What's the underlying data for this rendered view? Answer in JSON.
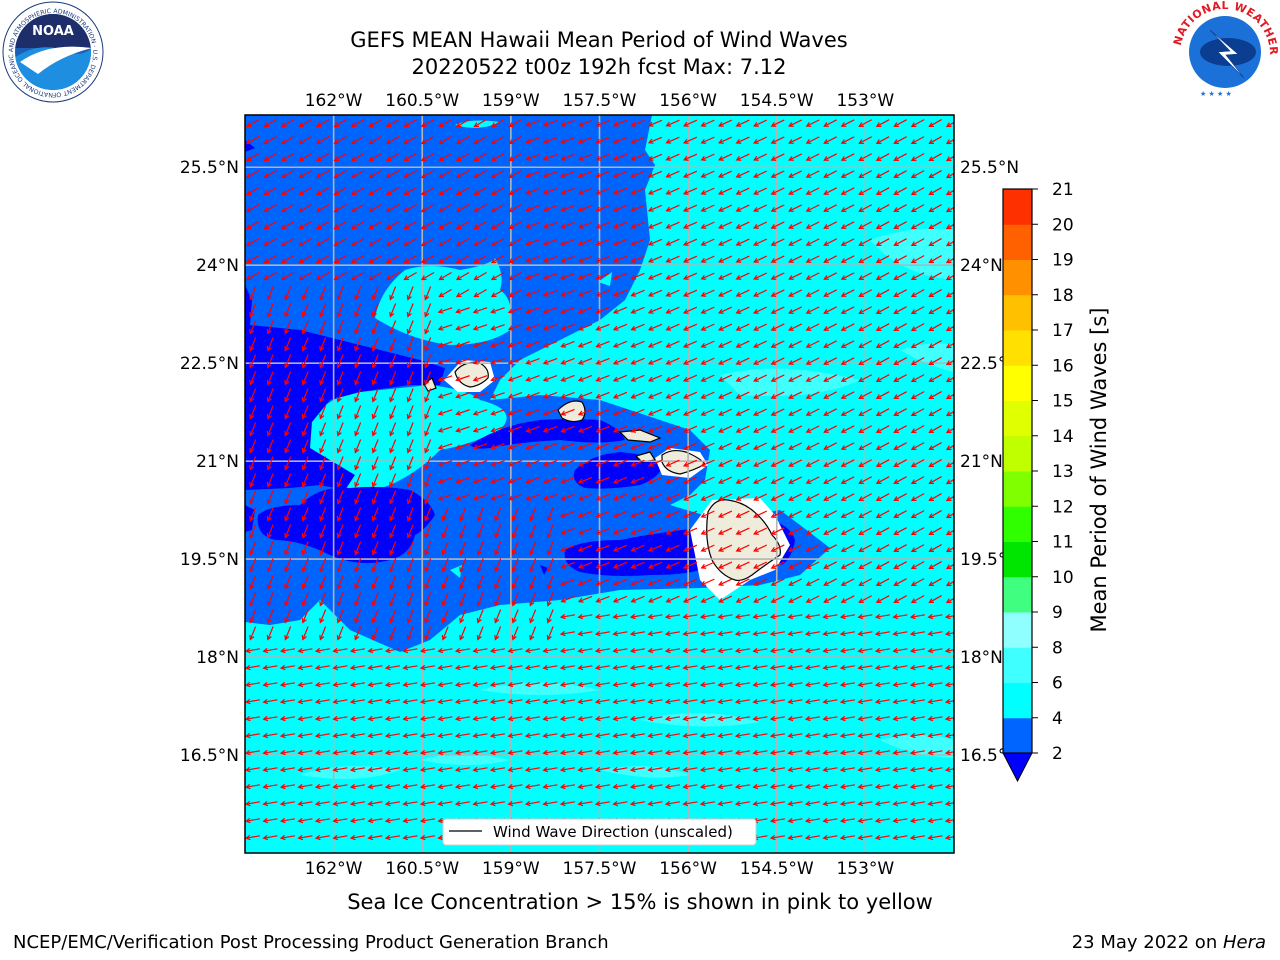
{
  "title": {
    "line1": "GEFS MEAN Hawaii Mean Period of Wind Waves",
    "line2": "20220522 t00z 192h fcst   Max: 7.12"
  },
  "map": {
    "lon_range": [
      -163.5,
      -151.5
    ],
    "lat_range": [
      15.0,
      26.3
    ],
    "lon_ticks": [
      {
        "value": -162.0,
        "label": "162°W"
      },
      {
        "value": -160.5,
        "label": "160.5°W"
      },
      {
        "value": -159.0,
        "label": "159°W"
      },
      {
        "value": -157.5,
        "label": "157.5°W"
      },
      {
        "value": -156.0,
        "label": "156°W"
      },
      {
        "value": -154.5,
        "label": "154.5°W"
      },
      {
        "value": -153.0,
        "label": "153°W"
      }
    ],
    "lat_ticks": [
      {
        "value": 25.5,
        "label": "25.5°N"
      },
      {
        "value": 24.0,
        "label": "24°N"
      },
      {
        "value": 22.5,
        "label": "22.5°N"
      },
      {
        "value": 21.0,
        "label": "21°N"
      },
      {
        "value": 19.5,
        "label": "19.5°N"
      },
      {
        "value": 18.0,
        "label": "18°N"
      },
      {
        "value": 16.5,
        "label": "16.5°N"
      }
    ],
    "legend_label": "Wind Wave Direction (unscaled)",
    "arrow_color": "#ff0000",
    "land_color": "#efecdc"
  },
  "colorbar": {
    "label": "Mean Period of Wind Waves [s]",
    "ticks": [
      2,
      4,
      6,
      8,
      9,
      10,
      11,
      12,
      13,
      14,
      15,
      16,
      17,
      18,
      19,
      20,
      21
    ],
    "colors": [
      "#0064ff",
      "#00ffff",
      "#40ffff",
      "#90ffff",
      "#40ff80",
      "#00e600",
      "#30ff00",
      "#80ff00",
      "#c0ff00",
      "#e0ff00",
      "#ffff00",
      "#ffe000",
      "#ffc000",
      "#ff9000",
      "#ff6000",
      "#ff3000"
    ],
    "under_color": "#0000ff"
  },
  "footer": {
    "caption": "Sea Ice Concentration > 15% is shown in pink to yellow",
    "credit": "NCEP/EMC/Verification Post Processing Product Generation Branch",
    "date": "23 May 2022 on ",
    "machine": "Hera"
  },
  "logos": {
    "noaa_text": "NOAA",
    "noaa_ring": "NATIONAL OCEANIC AND ATMOSPHERIC ADMINISTRATION · U.S. DEPARTMENT OF COMMERCE",
    "nws_ring": "NATIONAL WEATHER SERVICE"
  }
}
